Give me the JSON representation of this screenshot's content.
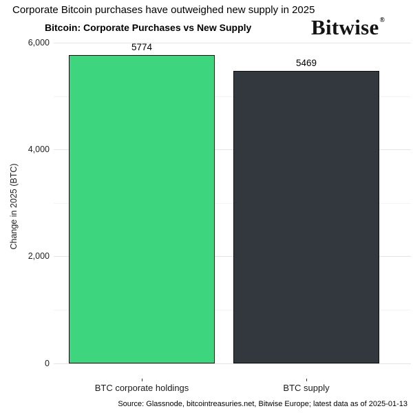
{
  "headline": "Corporate Bitcoin purchases have outweighed new supply in 2025",
  "logo": {
    "text": "Bitwise",
    "registered_mark": "®"
  },
  "chart_data": {
    "type": "bar",
    "title": "Bitcoin: Corporate Purchases vs New Supply",
    "categories": [
      "BTC corporate holdings",
      "BTC supply"
    ],
    "values": [
      5774,
      5469
    ],
    "bar_colors": [
      "#3dd57e",
      "#33383f"
    ],
    "xlabel": "",
    "ylabel": "Change in 2025 (BTC)",
    "ylim": [
      0,
      6000
    ],
    "ytick_step_major": 2000,
    "ytick_step_minor": 1000,
    "grid": "horizontal-only",
    "legend": "none",
    "value_labels": true
  },
  "source": "Source: Glassnode, bitcointreasuries.net, Bitwise Europe; latest data as of 2025-01-13"
}
